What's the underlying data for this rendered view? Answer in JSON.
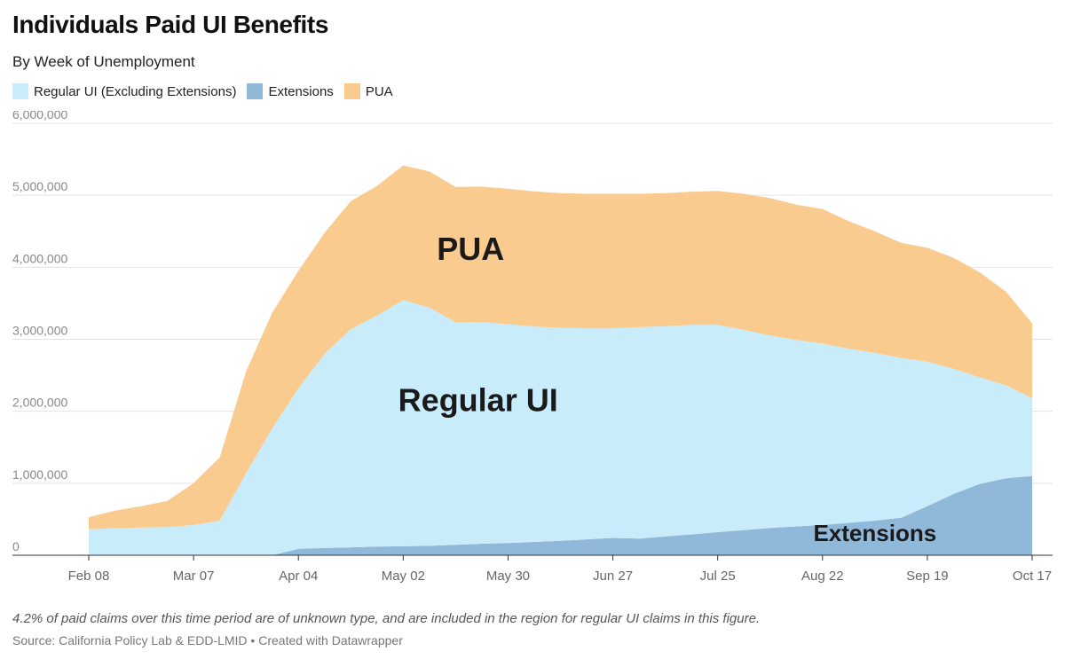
{
  "title": "Individuals Paid UI Benefits",
  "subtitle": "By Week of Unemployment",
  "legend": [
    {
      "label": "Regular UI (Excluding Extensions)",
      "color": "#c9ecfa"
    },
    {
      "label": "Extensions",
      "color": "#8fb8d9"
    },
    {
      "label": "PUA",
      "color": "#facb8f"
    }
  ],
  "note": "4.2% of paid claims over this time period are of unknown type, and are included in the region for regular UI claims in this figure.",
  "source": "Source: California Policy Lab & EDD-LMID • Created with Datawrapper",
  "chart_data": {
    "type": "area",
    "stacked": true,
    "x": [
      "2020-02-08",
      "2020-02-15",
      "2020-02-22",
      "2020-02-29",
      "2020-03-07",
      "2020-03-14",
      "2020-03-21",
      "2020-03-28",
      "2020-04-04",
      "2020-04-11",
      "2020-04-18",
      "2020-04-25",
      "2020-05-02",
      "2020-05-09",
      "2020-05-16",
      "2020-05-23",
      "2020-05-30",
      "2020-06-06",
      "2020-06-13",
      "2020-06-20",
      "2020-06-27",
      "2020-07-04",
      "2020-07-11",
      "2020-07-18",
      "2020-07-25",
      "2020-08-01",
      "2020-08-08",
      "2020-08-15",
      "2020-08-22",
      "2020-08-29",
      "2020-09-05",
      "2020-09-12",
      "2020-09-19",
      "2020-09-26",
      "2020-10-03",
      "2020-10-10",
      "2020-10-17"
    ],
    "x_tick_labels": [
      "Feb 08",
      "Mar 07",
      "Apr 04",
      "May 02",
      "May 30",
      "Jun 27",
      "Jul 25",
      "Aug 22",
      "Sep 19",
      "Oct 17"
    ],
    "x_tick_dates": [
      "2020-02-08",
      "2020-03-07",
      "2020-04-04",
      "2020-05-02",
      "2020-05-30",
      "2020-06-27",
      "2020-07-25",
      "2020-08-22",
      "2020-09-19",
      "2020-10-17"
    ],
    "y_tick_labels": [
      "0",
      "1,000,000",
      "2,000,000",
      "3,000,000",
      "4,000,000",
      "5,000,000",
      "6,000,000"
    ],
    "ylim": [
      0,
      6000000
    ],
    "grid": true,
    "legend_position": "top-left",
    "series": [
      {
        "name": "Extensions",
        "color": "#8fb8d9",
        "values": [
          0,
          0,
          0,
          0,
          0,
          0,
          0,
          0,
          90000,
          100000,
          110000,
          120000,
          125000,
          130000,
          145000,
          160000,
          170000,
          185000,
          200000,
          220000,
          240000,
          230000,
          260000,
          290000,
          320000,
          350000,
          380000,
          400000,
          420000,
          450000,
          480000,
          520000,
          680000,
          850000,
          990000,
          1070000,
          1100000
        ]
      },
      {
        "name": "Regular UI (Excluding Extensions)",
        "color": "#c9ecfa",
        "values": [
          360000,
          375000,
          385000,
          390000,
          420000,
          480000,
          1140000,
          1760000,
          2230000,
          2700000,
          3030000,
          3210000,
          3420000,
          3310000,
          3090000,
          3080000,
          3040000,
          2990000,
          2960000,
          2930000,
          2910000,
          2940000,
          2920000,
          2910000,
          2880000,
          2780000,
          2670000,
          2590000,
          2520000,
          2420000,
          2330000,
          2220000,
          2010000,
          1740000,
          1480000,
          1290000,
          1080000
        ]
      },
      {
        "name": "PUA",
        "color": "#facb8f",
        "values": [
          170000,
          245000,
          295000,
          365000,
          580000,
          880000,
          1410000,
          1610000,
          1630000,
          1680000,
          1780000,
          1800000,
          1870000,
          1890000,
          1880000,
          1880000,
          1880000,
          1880000,
          1870000,
          1870000,
          1870000,
          1850000,
          1850000,
          1850000,
          1860000,
          1890000,
          1910000,
          1880000,
          1870000,
          1770000,
          1690000,
          1600000,
          1580000,
          1540000,
          1460000,
          1300000,
          1040000
        ]
      }
    ],
    "annotations": [
      {
        "text": "PUA",
        "x": "2020-05-20",
        "y": 4100000
      },
      {
        "text": "Regular UI",
        "x": "2020-05-22",
        "y": 2000000
      },
      {
        "text": "Extensions",
        "x": "2020-09-05",
        "y": 200000
      }
    ]
  }
}
